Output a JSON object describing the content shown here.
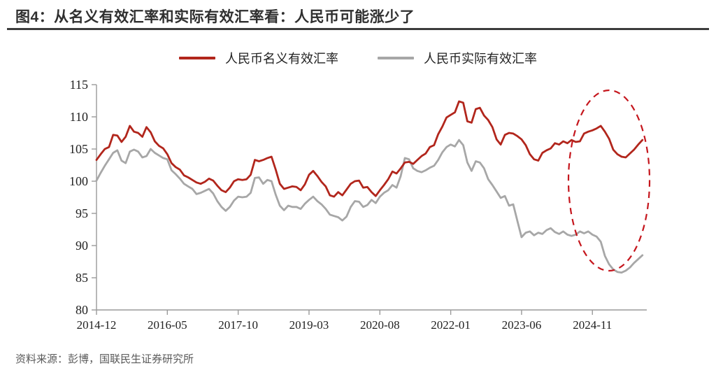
{
  "header": {
    "title": "图4：从名义有效汇率和实际有效汇率看：人民币可能涨少了"
  },
  "footer": {
    "source": "资料来源：彭博，国联民生证券研究所"
  },
  "colors": {
    "neer_line": "#B2261C",
    "reer_line": "#A7A7A7",
    "ellipse": "#C5161D",
    "axis": "#9a9a9a",
    "title_text": "#2f2f2f",
    "rule": "#3c3c3c",
    "source_text": "#5a5a5a"
  },
  "chart_data": {
    "type": "line",
    "title": "图4：从名义有效汇率和实际有效汇率看：人民币可能涨少了",
    "xlabel": "",
    "ylabel": "",
    "x_unit": "month",
    "x_start": "2014-12",
    "ylim": [
      80,
      115
    ],
    "y_ticks": [
      80,
      85,
      90,
      95,
      100,
      105,
      110,
      115
    ],
    "x_ticks": [
      {
        "label": "2014-12",
        "m": 0
      },
      {
        "label": "2016-05",
        "m": 17
      },
      {
        "label": "2017-10",
        "m": 34
      },
      {
        "label": "2019-03",
        "m": 51
      },
      {
        "label": "2020-08",
        "m": 68
      },
      {
        "label": "2022-01",
        "m": 85
      },
      {
        "label": "2023-06",
        "m": 102
      },
      {
        "label": "2024-11",
        "m": 119
      }
    ],
    "grid": false,
    "legend_position": "top",
    "series": [
      {
        "name": "人民币名义有效汇率",
        "color": "#B2261C",
        "values": [
          103.3,
          104.2,
          105.0,
          105.3,
          107.2,
          107.1,
          106.1,
          106.9,
          108.6,
          107.7,
          107.5,
          106.9,
          108.4,
          107.6,
          106.2,
          105.5,
          105.1,
          104.2,
          102.8,
          102.2,
          101.8,
          100.9,
          100.6,
          100.2,
          99.8,
          99.6,
          99.9,
          100.4,
          100.1,
          99.3,
          98.6,
          98.3,
          99.0,
          100.0,
          100.3,
          100.2,
          100.3,
          101.0,
          103.3,
          103.1,
          103.3,
          103.6,
          103.8,
          101.8,
          99.6,
          98.8,
          99.0,
          99.2,
          99.1,
          98.6,
          99.5,
          101.0,
          101.6,
          100.8,
          99.9,
          99.2,
          97.8,
          97.6,
          98.3,
          97.8,
          98.7,
          99.6,
          100.0,
          100.1,
          99.0,
          99.1,
          98.3,
          97.7,
          98.6,
          99.4,
          100.3,
          101.5,
          101.2,
          102.0,
          102.9,
          103.0,
          102.7,
          103.3,
          103.9,
          104.3,
          105.3,
          105.6,
          107.3,
          108.5,
          109.9,
          110.3,
          110.7,
          112.4,
          112.2,
          109.3,
          109.1,
          111.2,
          111.4,
          110.2,
          109.5,
          108.4,
          106.5,
          105.7,
          107.2,
          107.5,
          107.4,
          107.0,
          106.5,
          105.6,
          104.2,
          103.4,
          103.2,
          104.4,
          104.8,
          105.1,
          105.9,
          105.7,
          106.2,
          105.9,
          106.4,
          106.1,
          106.2,
          107.4,
          107.7,
          107.9,
          108.2,
          108.6,
          107.7,
          106.6,
          104.9,
          104.2,
          103.8,
          103.7,
          104.3,
          104.9,
          105.7,
          106.4
        ]
      },
      {
        "name": "人民币实际有效汇率",
        "color": "#A7A7A7",
        "values": [
          100.1,
          101.3,
          102.4,
          103.4,
          104.4,
          104.8,
          103.2,
          102.8,
          104.6,
          104.9,
          104.6,
          103.7,
          103.9,
          105.0,
          104.4,
          104.0,
          103.6,
          103.4,
          101.7,
          101.1,
          100.4,
          99.6,
          99.2,
          98.8,
          98.0,
          98.2,
          98.5,
          98.8,
          98.1,
          96.9,
          96.0,
          95.4,
          96.0,
          97.0,
          97.6,
          97.5,
          97.6,
          98.2,
          100.5,
          100.6,
          99.6,
          100.2,
          100.0,
          97.9,
          96.2,
          95.5,
          96.2,
          96.0,
          96.0,
          95.7,
          96.5,
          97.1,
          97.6,
          96.9,
          96.4,
          95.7,
          94.8,
          94.6,
          94.4,
          93.9,
          94.5,
          96.0,
          96.9,
          96.8,
          96.0,
          96.3,
          97.1,
          96.6,
          97.6,
          98.2,
          98.6,
          99.4,
          99.0,
          100.8,
          103.6,
          103.4,
          102.0,
          101.6,
          101.4,
          101.7,
          102.1,
          102.4,
          103.3,
          104.5,
          105.3,
          105.7,
          105.4,
          106.4,
          105.6,
          102.9,
          101.6,
          103.1,
          102.9,
          102.0,
          100.3,
          99.4,
          98.4,
          97.4,
          97.7,
          96.2,
          96.4,
          93.8,
          91.3,
          92.0,
          92.2,
          91.6,
          92.0,
          91.8,
          92.4,
          92.7,
          92.1,
          91.8,
          92.2,
          91.7,
          91.5,
          91.7,
          92.2,
          91.9,
          92.2,
          91.7,
          91.4,
          90.6,
          88.4,
          87.1,
          86.3,
          85.9,
          85.8,
          86.1,
          86.6,
          87.3,
          87.9,
          88.5
        ]
      }
    ],
    "annotation_ellipse": {
      "cx": 871,
      "cy": 258,
      "rx": 58,
      "ry": 129,
      "dash": "9 7",
      "stroke_width": 2.2
    }
  }
}
